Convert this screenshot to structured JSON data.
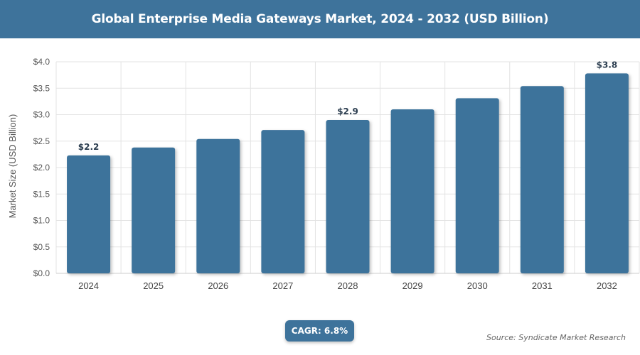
{
  "header": {
    "title": "Global Enterprise Media Gateways Market, 2024 - 2032 (USD Billion)"
  },
  "chart_data": {
    "type": "bar",
    "categories": [
      "2024",
      "2025",
      "2026",
      "2027",
      "2028",
      "2029",
      "2030",
      "2031",
      "2032"
    ],
    "values": [
      2.23,
      2.38,
      2.54,
      2.71,
      2.9,
      3.1,
      3.31,
      3.54,
      3.78
    ],
    "data_labels": {
      "2024": "$2.2",
      "2028": "$2.9",
      "2032": "$3.8"
    },
    "ylabel": "Market Size (USD Billion)",
    "ylim": [
      0,
      4
    ],
    "yticks": [
      0,
      0.5,
      1.0,
      1.5,
      2.0,
      2.5,
      3.0,
      3.5,
      4.0
    ],
    "ytick_labels": [
      "$0.0",
      "$0.5",
      "$1.0",
      "$1.5",
      "$2.0",
      "$2.5",
      "$3.0",
      "$3.5",
      "$4.0"
    ],
    "grid": true,
    "bar_color": "#3e739b"
  },
  "footer": {
    "cagr": "CAGR: 6.8%",
    "source": "Source: Syndicate Market Research"
  }
}
